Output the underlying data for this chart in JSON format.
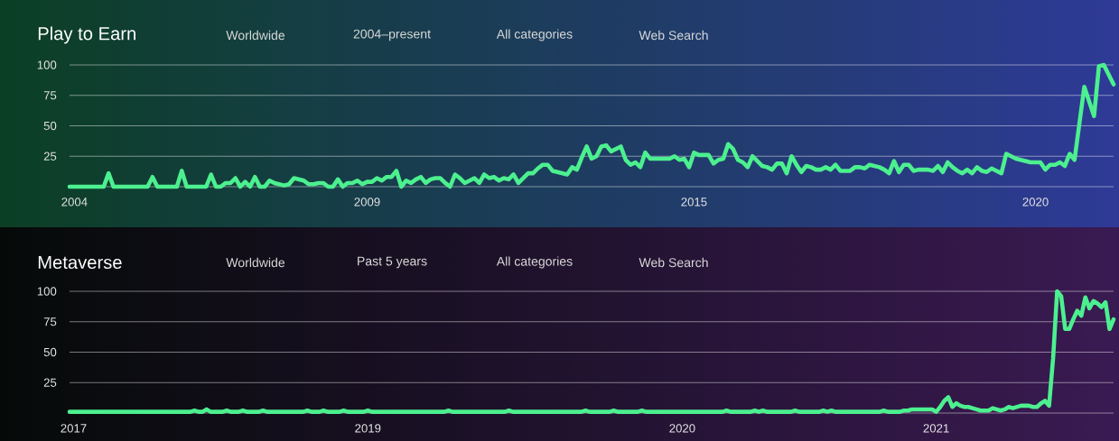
{
  "chart_data": [
    {
      "type": "line",
      "title": "Play to Earn",
      "annotations": [
        "Worldwide",
        "2004–present",
        "All categories",
        "Web Search"
      ],
      "color": "#4cf08f",
      "grid": "y",
      "ylim": [
        0,
        100
      ],
      "yticks": [
        {
          "value": 0,
          "label": null
        },
        25,
        50,
        75,
        100
      ],
      "categories": [
        null,
        "2004",
        null,
        null,
        null,
        null,
        null,
        null,
        null,
        null,
        null,
        null,
        null,
        null,
        null,
        null,
        null,
        null,
        null,
        null,
        null,
        null,
        null,
        null,
        null,
        null,
        null,
        null,
        null,
        null,
        null,
        null,
        null,
        null,
        null,
        null,
        null,
        null,
        null,
        null,
        null,
        null,
        null,
        null,
        null,
        null,
        null,
        null,
        null,
        null,
        null,
        null,
        null,
        null,
        null,
        null,
        null,
        null,
        null,
        null,
        null,
        "2009",
        null,
        null,
        null,
        null,
        null,
        null,
        null,
        null,
        null,
        null,
        null,
        null,
        null,
        null,
        null,
        null,
        null,
        null,
        null,
        null,
        null,
        null,
        null,
        null,
        null,
        null,
        null,
        null,
        null,
        null,
        null,
        null,
        null,
        null,
        null,
        null,
        null,
        null,
        null,
        null,
        null,
        null,
        null,
        null,
        null,
        null,
        null,
        null,
        null,
        null,
        null,
        null,
        null,
        null,
        null,
        null,
        null,
        null,
        null,
        null,
        null,
        null,
        null,
        null,
        null,
        null,
        "2015",
        null,
        null,
        null,
        null,
        null,
        null,
        null,
        null,
        null,
        null,
        null,
        null,
        null,
        null,
        null,
        null,
        null,
        null,
        null,
        null,
        null,
        null,
        null,
        null,
        null,
        null,
        null,
        null,
        null,
        null,
        null,
        null,
        null,
        null,
        null,
        null,
        null,
        null,
        null,
        null,
        null,
        null,
        null,
        null,
        null,
        null,
        null,
        null,
        null,
        null,
        null,
        null,
        null,
        null,
        null,
        null,
        null,
        null,
        null,
        null,
        null,
        null,
        null,
        null,
        null,
        null,
        null,
        null,
        null,
        "2020",
        null,
        null,
        null,
        null,
        null,
        null,
        null,
        null,
        null,
        null,
        null,
        null,
        null,
        null,
        null,
        null
      ],
      "values": [
        0,
        0,
        0,
        0,
        0,
        0,
        0,
        0,
        11,
        0,
        0,
        0,
        0,
        0,
        0,
        0,
        0,
        8,
        0,
        0,
        0,
        0,
        0,
        13,
        0,
        0,
        0,
        0,
        0,
        10,
        0,
        0,
        3,
        3,
        7,
        0,
        4,
        0,
        8,
        0,
        0,
        5,
        3,
        2,
        1,
        2,
        7,
        6,
        5,
        2,
        2,
        3,
        3,
        0,
        0,
        6,
        0,
        3,
        3,
        5,
        2,
        4,
        4,
        7,
        5,
        8,
        8,
        13,
        0,
        5,
        3,
        6,
        8,
        3,
        6,
        7,
        7,
        3,
        0,
        10,
        7,
        3,
        5,
        7,
        3,
        10,
        7,
        8,
        5,
        7,
        6,
        10,
        3,
        7,
        11,
        11,
        15,
        18,
        18,
        13,
        12,
        11,
        10,
        16,
        14,
        24,
        33,
        23,
        25,
        33,
        34,
        29,
        31,
        33,
        22,
        18,
        20,
        16,
        28,
        23,
        23,
        23,
        23,
        23,
        25,
        22,
        23,
        16,
        28,
        26,
        26,
        26,
        19,
        22,
        23,
        35,
        31,
        22,
        20,
        16,
        25,
        21,
        17,
        16,
        14,
        19,
        19,
        11,
        25,
        18,
        12,
        17,
        16,
        14,
        14,
        16,
        14,
        18,
        13,
        13,
        13,
        16,
        16,
        15,
        18,
        17,
        16,
        14,
        11,
        21,
        12,
        18,
        18,
        13,
        14,
        14,
        14,
        13,
        17,
        12,
        20,
        16,
        13,
        11,
        14,
        11,
        16,
        13,
        12,
        15,
        13,
        11,
        27,
        25,
        23,
        22,
        21,
        20,
        20,
        20,
        14,
        18,
        18,
        20,
        17,
        27,
        22,
        52,
        82,
        70,
        58,
        99,
        100,
        92,
        84
      ]
    },
    {
      "type": "line",
      "title": "Metaverse",
      "annotations": [
        "Worldwide",
        "Past 5 years",
        "All categories",
        "Web Search"
      ],
      "color": "#4cf08f",
      "grid": "y",
      "ylim": [
        0,
        100
      ],
      "yticks": [
        {
          "value": 0,
          "label": null
        },
        25,
        50,
        75,
        100
      ],
      "categories": [
        null,
        "2017",
        null,
        null,
        null,
        null,
        null,
        null,
        null,
        null,
        null,
        null,
        null,
        null,
        null,
        null,
        null,
        null,
        null,
        null,
        null,
        null,
        null,
        null,
        null,
        null,
        null,
        null,
        null,
        null,
        null,
        null,
        null,
        null,
        null,
        null,
        null,
        null,
        null,
        null,
        null,
        null,
        null,
        null,
        null,
        null,
        null,
        null,
        null,
        null,
        null,
        null,
        null,
        null,
        null,
        null,
        null,
        null,
        null,
        null,
        null,
        null,
        null,
        null,
        null,
        null,
        null,
        null,
        null,
        null,
        null,
        null,
        null,
        null,
        "2019",
        null,
        null,
        null,
        null,
        null,
        null,
        null,
        null,
        null,
        null,
        null,
        null,
        null,
        null,
        null,
        null,
        null,
        null,
        null,
        null,
        null,
        null,
        null,
        null,
        null,
        null,
        null,
        null,
        null,
        null,
        null,
        null,
        null,
        null,
        null,
        null,
        null,
        null,
        null,
        null,
        null,
        null,
        null,
        null,
        null,
        null,
        null,
        null,
        null,
        null,
        null,
        null,
        null,
        null,
        null,
        null,
        null,
        null,
        null,
        null,
        null,
        null,
        null,
        null,
        null,
        null,
        null,
        null,
        null,
        null,
        null,
        null,
        null,
        null,
        null,
        null,
        null,
        "2020",
        null,
        null,
        null,
        null,
        null,
        null,
        null,
        null,
        null,
        null,
        null,
        null,
        null,
        null,
        null,
        null,
        null,
        null,
        null,
        null,
        null,
        null,
        null,
        null,
        null,
        null,
        null,
        null,
        null,
        null,
        null,
        null,
        null,
        null,
        null,
        null,
        null,
        null,
        null,
        null,
        null,
        null,
        null,
        null,
        null,
        null,
        null,
        null,
        null,
        null,
        null,
        null,
        null,
        null,
        null,
        null,
        null,
        null,
        null,
        null,
        null,
        null,
        "2021",
        null,
        null,
        null,
        null,
        null,
        null,
        null,
        null,
        null,
        null,
        null,
        null,
        null,
        null,
        null,
        null,
        null,
        null,
        null,
        null,
        null,
        null,
        null,
        null,
        null,
        null,
        null,
        null,
        null,
        null,
        null,
        null,
        null,
        null,
        null,
        null,
        null,
        null,
        null,
        null,
        null,
        null,
        null,
        null
      ],
      "values": [
        1,
        1,
        1,
        1,
        1,
        1,
        1,
        1,
        1,
        1,
        1,
        1,
        1,
        1,
        1,
        1,
        1,
        1,
        1,
        1,
        1,
        1,
        1,
        1,
        1,
        1,
        1,
        1,
        1,
        1,
        1,
        2,
        1,
        1,
        3,
        1,
        1,
        1,
        1,
        2,
        1,
        1,
        1,
        2,
        1,
        1,
        1,
        1,
        2,
        1,
        1,
        1,
        1,
        1,
        1,
        1,
        1,
        1,
        1,
        2,
        1,
        1,
        1,
        2,
        1,
        1,
        1,
        1,
        2,
        1,
        1,
        1,
        1,
        1,
        2,
        1,
        1,
        1,
        1,
        1,
        1,
        1,
        1,
        1,
        1,
        1,
        1,
        1,
        1,
        1,
        1,
        1,
        1,
        1,
        2,
        1,
        1,
        1,
        1,
        1,
        1,
        1,
        1,
        1,
        1,
        1,
        1,
        1,
        1,
        2,
        1,
        1,
        1,
        1,
        1,
        1,
        1,
        1,
        1,
        1,
        1,
        1,
        1,
        1,
        1,
        1,
        1,
        1,
        2,
        1,
        1,
        1,
        1,
        1,
        1,
        2,
        1,
        1,
        1,
        1,
        1,
        1,
        2,
        1,
        1,
        1,
        1,
        1,
        1,
        1,
        1,
        1,
        1,
        1,
        1,
        1,
        1,
        1,
        1,
        1,
        1,
        1,
        1,
        2,
        1,
        1,
        1,
        1,
        1,
        1,
        2,
        1,
        2,
        1,
        1,
        1,
        1,
        1,
        1,
        1,
        2,
        1,
        1,
        1,
        1,
        1,
        1,
        2,
        1,
        2,
        1,
        1,
        1,
        1,
        1,
        1,
        1,
        1,
        1,
        1,
        1,
        1,
        2,
        1,
        1,
        1,
        1,
        2,
        2,
        3,
        3,
        3,
        3,
        3,
        3,
        1,
        5,
        10,
        13,
        5,
        8,
        6,
        5,
        5,
        4,
        3,
        2,
        2,
        2,
        4,
        3,
        2,
        3,
        5,
        4,
        5,
        6,
        6,
        6,
        5,
        5,
        8,
        10,
        6,
        45,
        100,
        96,
        69,
        69,
        77,
        84,
        80,
        95,
        86,
        92,
        90,
        87,
        91,
        69,
        77
      ]
    }
  ]
}
